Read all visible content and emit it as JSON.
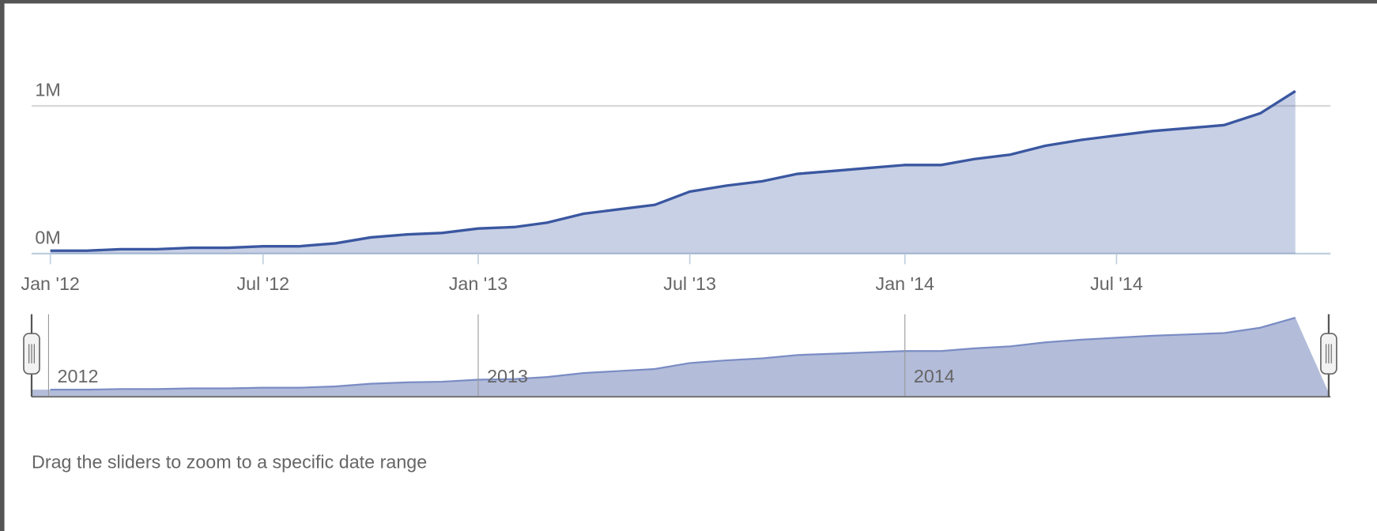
{
  "chart_data": {
    "type": "area",
    "x": [
      "2012-01",
      "2012-02",
      "2012-03",
      "2012-04",
      "2012-05",
      "2012-06",
      "2012-07",
      "2012-08",
      "2012-09",
      "2012-10",
      "2012-11",
      "2012-12",
      "2013-01",
      "2013-02",
      "2013-03",
      "2013-04",
      "2013-05",
      "2013-06",
      "2013-07",
      "2013-08",
      "2013-09",
      "2013-10",
      "2013-11",
      "2013-12",
      "2014-01",
      "2014-02",
      "2014-03",
      "2014-04",
      "2014-05",
      "2014-06",
      "2014-07",
      "2014-08",
      "2014-09",
      "2014-10",
      "2014-11",
      "2014-12"
    ],
    "series": [
      {
        "color": "#3a57a0",
        "values": [
          0.02,
          0.02,
          0.03,
          0.03,
          0.04,
          0.04,
          0.05,
          0.05,
          0.07,
          0.11,
          0.13,
          0.14,
          0.17,
          0.18,
          0.21,
          0.27,
          0.3,
          0.33,
          0.42,
          0.46,
          0.49,
          0.54,
          0.56,
          0.58,
          0.6,
          0.6,
          0.64,
          0.67,
          0.73,
          0.77,
          0.8,
          0.83,
          0.85,
          0.87,
          0.95,
          1.1
        ]
      }
    ],
    "xlim": [
      "2011-12-16",
      "2014-12-31"
    ],
    "xticks": [
      {
        "value": "2012-01",
        "label": "Jan '12"
      },
      {
        "value": "2012-07",
        "label": "Jul '12"
      },
      {
        "value": "2013-01",
        "label": "Jan '13"
      },
      {
        "value": "2013-07",
        "label": "Jul '13"
      },
      {
        "value": "2014-01",
        "label": "Jan '14"
      },
      {
        "value": "2014-07",
        "label": "Jul '14"
      }
    ],
    "ylim": [
      0,
      1.2
    ],
    "yticks": [
      {
        "value": 0,
        "label": "0M"
      },
      {
        "value": 1,
        "label": "1M"
      }
    ],
    "grid": true,
    "navigator": {
      "fill": "#b3bcd9",
      "line": "#7a8cc4",
      "xticks": [
        {
          "value": "2012-01",
          "label": "2012"
        },
        {
          "value": "2013-01",
          "label": "2013"
        },
        {
          "value": "2014-01",
          "label": "2014"
        }
      ]
    },
    "hint": "Drag the sliders to zoom to a specific date range"
  }
}
